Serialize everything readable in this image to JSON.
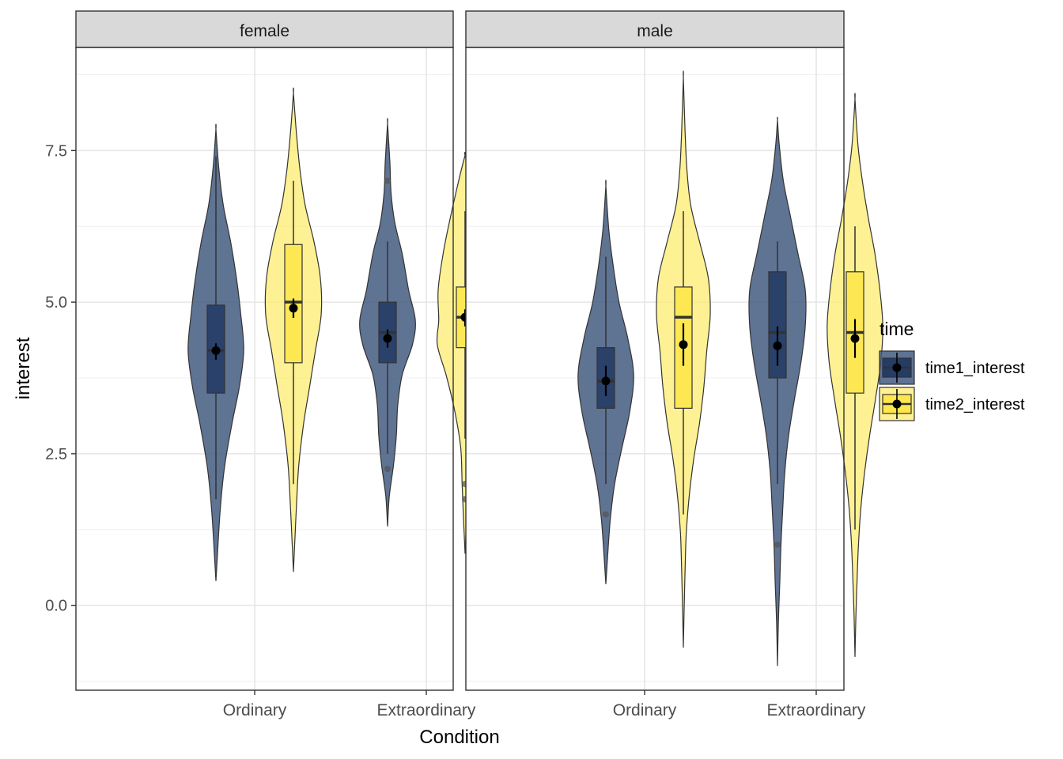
{
  "chart_data": {
    "type": "violin",
    "facets": [
      "female",
      "male"
    ],
    "categories": [
      "Ordinary",
      "Extraordinary"
    ],
    "xlabel": "Condition",
    "ylabel": "interest",
    "ylim": [
      -1.4,
      9.2
    ],
    "yticks": [
      0.0,
      2.5,
      5.0,
      7.5
    ],
    "ytick_labels": [
      "0.0",
      "2.5",
      "5.0",
      "7.5"
    ],
    "legend": {
      "title": "time",
      "position": "right",
      "entries": [
        {
          "label": "time1_interest",
          "color": "#2a3f64"
        },
        {
          "label": "time2_interest",
          "color": "#fdea5e"
        }
      ]
    },
    "series": [
      {
        "name": "time1_interest",
        "fill": "#435a80",
        "box_fill": "#253c66"
      },
      {
        "name": "time2_interest",
        "fill": "#fdec70",
        "box_fill": "#fde74c"
      }
    ],
    "groups": [
      {
        "facet": "female",
        "category": "Ordinary",
        "series": "time1_interest",
        "violin_min": 0.4,
        "violin_max": 7.85,
        "profile": [
          [
            0.4,
            0.0
          ],
          [
            0.9,
            0.06
          ],
          [
            1.6,
            0.15
          ],
          [
            2.3,
            0.3
          ],
          [
            3.0,
            0.55
          ],
          [
            3.6,
            0.8
          ],
          [
            4.2,
            0.95
          ],
          [
            4.8,
            0.85
          ],
          [
            5.4,
            0.7
          ],
          [
            6.0,
            0.5
          ],
          [
            6.6,
            0.25
          ],
          [
            7.2,
            0.1
          ],
          [
            7.85,
            0.0
          ]
        ],
        "q1": 3.5,
        "median": 4.2,
        "q3": 4.95,
        "whisker_low": 1.75,
        "whisker_high": 7.4,
        "mean": 4.2,
        "ci": [
          4.05,
          4.32
        ],
        "outliers": []
      },
      {
        "facet": "female",
        "category": "Ordinary",
        "series": "time2_interest",
        "violin_min": 0.55,
        "violin_max": 8.45,
        "profile": [
          [
            0.55,
            0.0
          ],
          [
            1.1,
            0.05
          ],
          [
            1.6,
            0.1
          ],
          [
            2.3,
            0.18
          ],
          [
            3.0,
            0.35
          ],
          [
            3.6,
            0.55
          ],
          [
            4.2,
            0.75
          ],
          [
            4.8,
            0.95
          ],
          [
            5.4,
            0.92
          ],
          [
            6.0,
            0.7
          ],
          [
            6.6,
            0.4
          ],
          [
            7.2,
            0.22
          ],
          [
            7.8,
            0.1
          ],
          [
            8.45,
            0.0
          ]
        ],
        "q1": 4.0,
        "median": 5.0,
        "q3": 5.95,
        "whisker_low": 2.0,
        "whisker_high": 7.0,
        "mean": 4.9,
        "ci": [
          4.74,
          5.06
        ],
        "outliers": []
      },
      {
        "facet": "female",
        "category": "Extraordinary",
        "series": "time1_interest",
        "violin_min": 1.3,
        "violin_max": 7.95,
        "profile": [
          [
            1.3,
            0.0
          ],
          [
            1.8,
            0.06
          ],
          [
            2.3,
            0.2
          ],
          [
            2.8,
            0.3
          ],
          [
            3.3,
            0.35
          ],
          [
            3.8,
            0.5
          ],
          [
            4.3,
            0.85
          ],
          [
            4.7,
            0.95
          ],
          [
            5.2,
            0.72
          ],
          [
            5.8,
            0.5
          ],
          [
            6.3,
            0.25
          ],
          [
            6.8,
            0.12
          ],
          [
            7.3,
            0.08
          ],
          [
            7.95,
            0.0
          ]
        ],
        "q1": 4.0,
        "median": 4.5,
        "q3": 5.0,
        "whisker_low": 2.5,
        "whisker_high": 6.0,
        "mean": 4.4,
        "ci": [
          4.25,
          4.55
        ],
        "outliers": [
          7.0,
          2.25
        ]
      },
      {
        "facet": "female",
        "category": "Extraordinary",
        "series": "time2_interest",
        "violin_min": 0.85,
        "violin_max": 7.42,
        "profile": [
          [
            0.85,
            0.0
          ],
          [
            1.4,
            0.05
          ],
          [
            2.0,
            0.1
          ],
          [
            2.6,
            0.15
          ],
          [
            3.2,
            0.35
          ],
          [
            3.8,
            0.65
          ],
          [
            4.3,
            0.95
          ],
          [
            4.7,
            0.9
          ],
          [
            5.2,
            0.92
          ],
          [
            5.8,
            0.75
          ],
          [
            6.4,
            0.5
          ],
          [
            7.0,
            0.22
          ],
          [
            7.42,
            0.0
          ]
        ],
        "q1": 4.25,
        "median": 4.75,
        "q3": 5.25,
        "whisker_low": 2.75,
        "whisker_high": 6.5,
        "mean": 4.75,
        "ci": [
          4.6,
          4.88
        ],
        "outliers": [
          2.0,
          1.75
        ]
      },
      {
        "facet": "male",
        "category": "Ordinary",
        "series": "time1_interest",
        "violin_min": 0.35,
        "violin_max": 6.92,
        "profile": [
          [
            0.35,
            0.0
          ],
          [
            0.8,
            0.06
          ],
          [
            1.4,
            0.15
          ],
          [
            2.0,
            0.3
          ],
          [
            2.6,
            0.55
          ],
          [
            3.2,
            0.82
          ],
          [
            3.8,
            0.95
          ],
          [
            4.4,
            0.75
          ],
          [
            5.0,
            0.45
          ],
          [
            5.6,
            0.25
          ],
          [
            6.2,
            0.1
          ],
          [
            6.92,
            0.0
          ]
        ],
        "q1": 3.25,
        "median": 3.7,
        "q3": 4.25,
        "whisker_low": 2.0,
        "whisker_high": 5.75,
        "mean": 3.7,
        "ci": [
          3.45,
          3.95
        ],
        "outliers": [
          1.5
        ]
      },
      {
        "facet": "male",
        "category": "Ordinary",
        "series": "time2_interest",
        "violin_min": -0.7,
        "violin_max": 8.7,
        "profile": [
          [
            -0.7,
            0.0
          ],
          [
            0.0,
            0.03
          ],
          [
            0.6,
            0.06
          ],
          [
            1.2,
            0.1
          ],
          [
            1.8,
            0.2
          ],
          [
            2.4,
            0.35
          ],
          [
            3.0,
            0.55
          ],
          [
            3.6,
            0.7
          ],
          [
            4.2,
            0.8
          ],
          [
            4.8,
            0.92
          ],
          [
            5.4,
            0.85
          ],
          [
            6.0,
            0.55
          ],
          [
            6.6,
            0.25
          ],
          [
            7.2,
            0.12
          ],
          [
            7.8,
            0.06
          ],
          [
            8.7,
            0.0
          ]
        ],
        "q1": 3.25,
        "median": 4.75,
        "q3": 5.25,
        "whisker_low": 1.5,
        "whisker_high": 6.5,
        "mean": 4.3,
        "ci": [
          3.95,
          4.65
        ],
        "outliers": []
      },
      {
        "facet": "male",
        "category": "Extraordinary",
        "series": "time1_interest",
        "violin_min": -1.0,
        "violin_max": 8.0,
        "profile": [
          [
            -1.0,
            0.0
          ],
          [
            -0.3,
            0.03
          ],
          [
            0.4,
            0.08
          ],
          [
            1.0,
            0.12
          ],
          [
            1.6,
            0.18
          ],
          [
            2.2,
            0.25
          ],
          [
            2.8,
            0.38
          ],
          [
            3.4,
            0.58
          ],
          [
            4.0,
            0.8
          ],
          [
            4.6,
            0.95
          ],
          [
            5.2,
            0.95
          ],
          [
            5.8,
            0.7
          ],
          [
            6.4,
            0.45
          ],
          [
            7.0,
            0.2
          ],
          [
            7.6,
            0.06
          ],
          [
            8.0,
            0.0
          ]
        ],
        "q1": 3.75,
        "median": 4.5,
        "q3": 5.5,
        "whisker_low": 2.0,
        "whisker_high": 6.0,
        "mean": 4.28,
        "ci": [
          3.95,
          4.6
        ],
        "outliers": [
          1.0
        ]
      },
      {
        "facet": "male",
        "category": "Extraordinary",
        "series": "time2_interest",
        "violin_min": -0.85,
        "violin_max": 8.35,
        "profile": [
          [
            -0.85,
            0.0
          ],
          [
            -0.2,
            0.03
          ],
          [
            0.4,
            0.07
          ],
          [
            1.0,
            0.12
          ],
          [
            1.6,
            0.2
          ],
          [
            2.2,
            0.33
          ],
          [
            2.8,
            0.5
          ],
          [
            3.4,
            0.7
          ],
          [
            4.0,
            0.88
          ],
          [
            4.6,
            0.95
          ],
          [
            5.2,
            0.85
          ],
          [
            5.8,
            0.68
          ],
          [
            6.4,
            0.45
          ],
          [
            7.0,
            0.25
          ],
          [
            7.6,
            0.1
          ],
          [
            8.35,
            0.0
          ]
        ],
        "q1": 3.5,
        "median": 4.5,
        "q3": 5.5,
        "whisker_low": 1.25,
        "whisker_high": 6.25,
        "mean": 4.4,
        "ci": [
          4.08,
          4.72
        ],
        "outliers": []
      }
    ]
  }
}
